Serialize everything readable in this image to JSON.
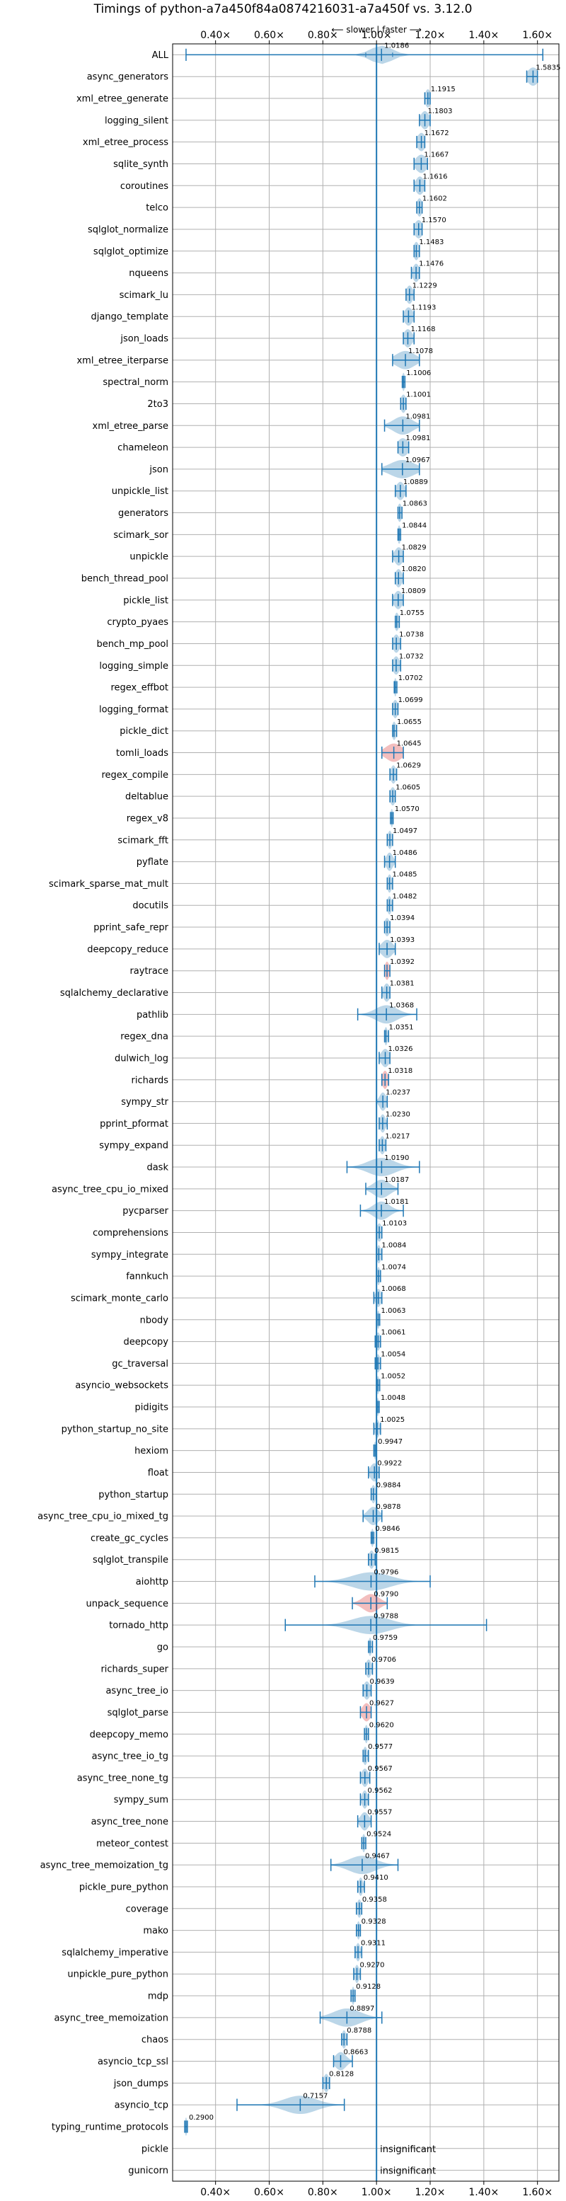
{
  "colors": {
    "background": "#ffffff",
    "violin": "#1f77b4",
    "highlight": "#d62728",
    "grid": "#b0b0b0",
    "reference": "#1f77b4"
  },
  "chart_data": {
    "type": "violin",
    "title": "Timings of python-a7a450f84a0874216031-a7a450f vs. 3.12.0",
    "direction_annotation": "⟵ slower  |  faster ⟶",
    "xlim": [
      0.24,
      1.68
    ],
    "reference_line": 1.0,
    "x_ticks": [
      {
        "value": 0.4,
        "label": "0.40×"
      },
      {
        "value": 0.6,
        "label": "0.60×"
      },
      {
        "value": 0.8,
        "label": "0.80×"
      },
      {
        "value": 1.0,
        "label": "1.00×"
      },
      {
        "value": 1.2,
        "label": "1.20×"
      },
      {
        "value": 1.4,
        "label": "1.40×"
      },
      {
        "value": 1.6,
        "label": "1.60×"
      }
    ],
    "benchmarks": [
      {
        "name": "ALL",
        "value": 1.0186,
        "label": "1.0186",
        "min": 0.29,
        "max": 1.62,
        "spread": 0.04,
        "q1": 0.96,
        "q3": 1.06
      },
      {
        "name": "async_generators",
        "value": 1.5835,
        "label": "1.5835",
        "min": 1.56,
        "max": 1.6,
        "spread": 0.02
      },
      {
        "name": "xml_etree_generate",
        "value": 1.1915,
        "label": "1.1915",
        "min": 1.18,
        "max": 1.2,
        "spread": 0.01
      },
      {
        "name": "logging_silent",
        "value": 1.1803,
        "label": "1.1803",
        "min": 1.16,
        "max": 1.2,
        "spread": 0.015
      },
      {
        "name": "xml_etree_process",
        "value": 1.1672,
        "label": "1.1672",
        "min": 1.15,
        "max": 1.18,
        "spread": 0.015
      },
      {
        "name": "sqlite_synth",
        "value": 1.1667,
        "label": "1.1667",
        "min": 1.14,
        "max": 1.19,
        "spread": 0.02
      },
      {
        "name": "coroutines",
        "value": 1.1616,
        "label": "1.1616",
        "min": 1.14,
        "max": 1.18,
        "spread": 0.015
      },
      {
        "name": "telco",
        "value": 1.1602,
        "label": "1.1602",
        "min": 1.15,
        "max": 1.17,
        "spread": 0.01
      },
      {
        "name": "sqlglot_normalize",
        "value": 1.157,
        "label": "1.1570",
        "min": 1.14,
        "max": 1.17,
        "spread": 0.015
      },
      {
        "name": "sqlglot_optimize",
        "value": 1.1483,
        "label": "1.1483",
        "min": 1.14,
        "max": 1.16,
        "spread": 0.01
      },
      {
        "name": "nqueens",
        "value": 1.1476,
        "label": "1.1476",
        "min": 1.13,
        "max": 1.16,
        "spread": 0.012
      },
      {
        "name": "scimark_lu",
        "value": 1.1229,
        "label": "1.1229",
        "min": 1.11,
        "max": 1.14,
        "spread": 0.012
      },
      {
        "name": "django_template",
        "value": 1.1193,
        "label": "1.1193",
        "min": 1.1,
        "max": 1.14,
        "spread": 0.015
      },
      {
        "name": "json_loads",
        "value": 1.1168,
        "label": "1.1168",
        "min": 1.1,
        "max": 1.14,
        "spread": 0.015
      },
      {
        "name": "xml_etree_iterparse",
        "value": 1.1078,
        "label": "1.1078",
        "min": 1.06,
        "max": 1.16,
        "spread": 0.035
      },
      {
        "name": "spectral_norm",
        "value": 1.1006,
        "label": "1.1006",
        "min": 1.096,
        "max": 1.106,
        "spread": 0.005
      },
      {
        "name": "2to3",
        "value": 1.1001,
        "label": "1.1001",
        "min": 1.09,
        "max": 1.11,
        "spread": 0.01
      },
      {
        "name": "xml_etree_parse",
        "value": 1.0981,
        "label": "1.0981",
        "min": 1.03,
        "max": 1.16,
        "spread": 0.035
      },
      {
        "name": "chameleon",
        "value": 1.0981,
        "label": "1.0981",
        "min": 1.08,
        "max": 1.12,
        "spread": 0.02
      },
      {
        "name": "json",
        "value": 1.0967,
        "label": "1.0967",
        "min": 1.02,
        "max": 1.16,
        "spread": 0.045
      },
      {
        "name": "unpickle_list",
        "value": 1.0889,
        "label": "1.0889",
        "min": 1.07,
        "max": 1.11,
        "spread": 0.015
      },
      {
        "name": "generators",
        "value": 1.0863,
        "label": "1.0863",
        "min": 1.08,
        "max": 1.095,
        "spread": 0.008
      },
      {
        "name": "scimark_sor",
        "value": 1.0844,
        "label": "1.0844",
        "min": 1.08,
        "max": 1.09,
        "spread": 0.006
      },
      {
        "name": "unpickle",
        "value": 1.0829,
        "label": "1.0829",
        "min": 1.06,
        "max": 1.1,
        "spread": 0.015
      },
      {
        "name": "bench_thread_pool",
        "value": 1.082,
        "label": "1.0820",
        "min": 1.07,
        "max": 1.1,
        "spread": 0.012
      },
      {
        "name": "pickle_list",
        "value": 1.0809,
        "label": "1.0809",
        "min": 1.06,
        "max": 1.1,
        "spread": 0.015
      },
      {
        "name": "crypto_pyaes",
        "value": 1.0755,
        "label": "1.0755",
        "min": 1.07,
        "max": 1.085,
        "spread": 0.008
      },
      {
        "name": "bench_mp_pool",
        "value": 1.0738,
        "label": "1.0738",
        "min": 1.06,
        "max": 1.09,
        "spread": 0.012
      },
      {
        "name": "logging_simple",
        "value": 1.0732,
        "label": "1.0732",
        "min": 1.06,
        "max": 1.09,
        "spread": 0.012
      },
      {
        "name": "regex_effbot",
        "value": 1.0702,
        "label": "1.0702",
        "min": 1.066,
        "max": 1.076,
        "spread": 0.005
      },
      {
        "name": "logging_format",
        "value": 1.0699,
        "label": "1.0699",
        "min": 1.06,
        "max": 1.08,
        "spread": 0.01
      },
      {
        "name": "pickle_dict",
        "value": 1.0655,
        "label": "1.0655",
        "min": 1.06,
        "max": 1.075,
        "spread": 0.008
      },
      {
        "name": "tomli_loads",
        "value": 1.0645,
        "label": "1.0645",
        "min": 1.02,
        "max": 1.1,
        "spread": 0.03,
        "highlight": true
      },
      {
        "name": "regex_compile",
        "value": 1.0629,
        "label": "1.0629",
        "min": 1.05,
        "max": 1.075,
        "spread": 0.01
      },
      {
        "name": "deltablue",
        "value": 1.0605,
        "label": "1.0605",
        "min": 1.05,
        "max": 1.07,
        "spread": 0.01
      },
      {
        "name": "regex_v8",
        "value": 1.057,
        "label": "1.0570",
        "min": 1.052,
        "max": 1.062,
        "spread": 0.005
      },
      {
        "name": "scimark_fft",
        "value": 1.0497,
        "label": "1.0497",
        "min": 1.04,
        "max": 1.06,
        "spread": 0.008
      },
      {
        "name": "pyflate",
        "value": 1.0486,
        "label": "1.0486",
        "min": 1.03,
        "max": 1.07,
        "spread": 0.012
      },
      {
        "name": "scimark_sparse_mat_mult",
        "value": 1.0485,
        "label": "1.0485",
        "min": 1.04,
        "max": 1.06,
        "spread": 0.008
      },
      {
        "name": "docutils",
        "value": 1.0482,
        "label": "1.0482",
        "min": 1.04,
        "max": 1.06,
        "spread": 0.008
      },
      {
        "name": "pprint_safe_repr",
        "value": 1.0394,
        "label": "1.0394",
        "min": 1.03,
        "max": 1.05,
        "spread": 0.01
      },
      {
        "name": "deepcopy_reduce",
        "value": 1.0393,
        "label": "1.0393",
        "min": 1.01,
        "max": 1.07,
        "spread": 0.02
      },
      {
        "name": "raytrace",
        "value": 1.0392,
        "label": "1.0392",
        "min": 1.03,
        "max": 1.05,
        "spread": 0.008,
        "highlight": true
      },
      {
        "name": "sqlalchemy_declarative",
        "value": 1.0381,
        "label": "1.0381",
        "min": 1.02,
        "max": 1.05,
        "spread": 0.012
      },
      {
        "name": "pathlib",
        "value": 1.0368,
        "label": "1.0368",
        "min": 0.93,
        "max": 1.15,
        "spread": 0.04
      },
      {
        "name": "regex_dna",
        "value": 1.0351,
        "label": "1.0351",
        "min": 1.03,
        "max": 1.045,
        "spread": 0.006
      },
      {
        "name": "dulwich_log",
        "value": 1.0326,
        "label": "1.0326",
        "min": 1.01,
        "max": 1.05,
        "spread": 0.015
      },
      {
        "name": "richards",
        "value": 1.0318,
        "label": "1.0318",
        "min": 1.02,
        "max": 1.045,
        "spread": 0.01,
        "highlight": true
      },
      {
        "name": "sympy_str",
        "value": 1.0237,
        "label": "1.0237",
        "min": 1.0,
        "max": 1.04,
        "spread": 0.012
      },
      {
        "name": "pprint_pformat",
        "value": 1.023,
        "label": "1.0230",
        "min": 1.01,
        "max": 1.04,
        "spread": 0.01
      },
      {
        "name": "sympy_expand",
        "value": 1.0217,
        "label": "1.0217",
        "min": 1.01,
        "max": 1.035,
        "spread": 0.01
      },
      {
        "name": "dask",
        "value": 1.019,
        "label": "1.0190",
        "min": 0.89,
        "max": 1.16,
        "spread": 0.05
      },
      {
        "name": "async_tree_cpu_io_mixed",
        "value": 1.0187,
        "label": "1.0187",
        "min": 0.96,
        "max": 1.08,
        "spread": 0.03
      },
      {
        "name": "pycparser",
        "value": 1.0181,
        "label": "1.0181",
        "min": 0.94,
        "max": 1.1,
        "spread": 0.03
      },
      {
        "name": "comprehensions",
        "value": 1.0103,
        "label": "1.0103",
        "min": 1.0,
        "max": 1.02,
        "spread": 0.01
      },
      {
        "name": "sympy_integrate",
        "value": 1.0084,
        "label": "1.0084",
        "min": 1.0,
        "max": 1.02,
        "spread": 0.008
      },
      {
        "name": "fannkuch",
        "value": 1.0074,
        "label": "1.0074",
        "min": 1.0,
        "max": 1.015,
        "spread": 0.006
      },
      {
        "name": "scimark_monte_carlo",
        "value": 1.0068,
        "label": "1.0068",
        "min": 0.99,
        "max": 1.02,
        "spread": 0.01
      },
      {
        "name": "nbody",
        "value": 1.0063,
        "label": "1.0063",
        "min": 1.0,
        "max": 1.012,
        "spread": 0.005
      },
      {
        "name": "deepcopy",
        "value": 1.0061,
        "label": "1.0061",
        "min": 0.995,
        "max": 1.015,
        "spread": 0.008
      },
      {
        "name": "gc_traversal",
        "value": 1.0054,
        "label": "1.0054",
        "min": 0.995,
        "max": 1.015,
        "spread": 0.008
      },
      {
        "name": "asyncio_websockets",
        "value": 1.0052,
        "label": "1.0052",
        "min": 1.0,
        "max": 1.012,
        "spread": 0.005
      },
      {
        "name": "pidigits",
        "value": 1.0048,
        "label": "1.0048",
        "min": 1.0,
        "max": 1.01,
        "spread": 0.004
      },
      {
        "name": "python_startup_no_site",
        "value": 1.0025,
        "label": "1.0025",
        "min": 0.99,
        "max": 1.015,
        "spread": 0.008
      },
      {
        "name": "hexiom",
        "value": 0.9947,
        "label": "0.9947",
        "min": 0.99,
        "max": 1.0,
        "spread": 0.004
      },
      {
        "name": "float",
        "value": 0.9922,
        "label": "0.9922",
        "min": 0.97,
        "max": 1.01,
        "spread": 0.015
      },
      {
        "name": "python_startup",
        "value": 0.9884,
        "label": "0.9884",
        "min": 0.98,
        "max": 1.0,
        "spread": 0.008
      },
      {
        "name": "async_tree_cpu_io_mixed_tg",
        "value": 0.9878,
        "label": "0.9878",
        "min": 0.95,
        "max": 1.02,
        "spread": 0.02
      },
      {
        "name": "create_gc_cycles",
        "value": 0.9846,
        "label": "0.9846",
        "min": 0.98,
        "max": 0.99,
        "spread": 0.005
      },
      {
        "name": "sqlglot_transpile",
        "value": 0.9815,
        "label": "0.9815",
        "min": 0.97,
        "max": 0.995,
        "spread": 0.01
      },
      {
        "name": "aiohttp",
        "value": 0.9796,
        "label": "0.9796",
        "min": 0.77,
        "max": 1.2,
        "spread": 0.07
      },
      {
        "name": "unpack_sequence",
        "value": 0.979,
        "label": "0.9790",
        "min": 0.91,
        "max": 1.04,
        "spread": 0.03,
        "highlight": true
      },
      {
        "name": "tornado_http",
        "value": 0.9788,
        "label": "0.9788",
        "min": 0.66,
        "max": 1.41,
        "spread": 0.07
      },
      {
        "name": "go",
        "value": 0.9759,
        "label": "0.9759",
        "min": 0.97,
        "max": 0.985,
        "spread": 0.006
      },
      {
        "name": "richards_super",
        "value": 0.9706,
        "label": "0.9706",
        "min": 0.96,
        "max": 0.985,
        "spread": 0.01
      },
      {
        "name": "async_tree_io",
        "value": 0.9639,
        "label": "0.9639",
        "min": 0.95,
        "max": 0.98,
        "spread": 0.012
      },
      {
        "name": "sqlglot_parse",
        "value": 0.9627,
        "label": "0.9627",
        "min": 0.94,
        "max": 0.98,
        "spread": 0.015,
        "highlight": true
      },
      {
        "name": "deepcopy_memo",
        "value": 0.962,
        "label": "0.9620",
        "min": 0.955,
        "max": 0.97,
        "spread": 0.006
      },
      {
        "name": "async_tree_io_tg",
        "value": 0.9577,
        "label": "0.9577",
        "min": 0.95,
        "max": 0.97,
        "spread": 0.008
      },
      {
        "name": "async_tree_none_tg",
        "value": 0.9567,
        "label": "0.9567",
        "min": 0.94,
        "max": 0.975,
        "spread": 0.012
      },
      {
        "name": "sympy_sum",
        "value": 0.9562,
        "label": "0.9562",
        "min": 0.94,
        "max": 0.97,
        "spread": 0.01
      },
      {
        "name": "async_tree_none",
        "value": 0.9557,
        "label": "0.9557",
        "min": 0.93,
        "max": 0.98,
        "spread": 0.015
      },
      {
        "name": "meteor_contest",
        "value": 0.9524,
        "label": "0.9524",
        "min": 0.945,
        "max": 0.96,
        "spread": 0.006
      },
      {
        "name": "async_tree_memoization_tg",
        "value": 0.9467,
        "label": "0.9467",
        "min": 0.83,
        "max": 1.08,
        "spread": 0.05
      },
      {
        "name": "pickle_pure_python",
        "value": 0.941,
        "label": "0.9410",
        "min": 0.93,
        "max": 0.955,
        "spread": 0.008
      },
      {
        "name": "coverage",
        "value": 0.9358,
        "label": "0.9358",
        "min": 0.925,
        "max": 0.945,
        "spread": 0.008
      },
      {
        "name": "mako",
        "value": 0.9328,
        "label": "0.9328",
        "min": 0.925,
        "max": 0.94,
        "spread": 0.006
      },
      {
        "name": "sqlalchemy_imperative",
        "value": 0.9311,
        "label": "0.9311",
        "min": 0.92,
        "max": 0.945,
        "spread": 0.008
      },
      {
        "name": "unpickle_pure_python",
        "value": 0.927,
        "label": "0.9270",
        "min": 0.915,
        "max": 0.94,
        "spread": 0.008
      },
      {
        "name": "mdp",
        "value": 0.9128,
        "label": "0.9128",
        "min": 0.905,
        "max": 0.92,
        "spread": 0.005
      },
      {
        "name": "async_tree_memoization",
        "value": 0.8897,
        "label": "0.8897",
        "min": 0.79,
        "max": 1.02,
        "spread": 0.05
      },
      {
        "name": "chaos",
        "value": 0.8788,
        "label": "0.8788",
        "min": 0.87,
        "max": 0.89,
        "spread": 0.008
      },
      {
        "name": "asyncio_tcp_ssl",
        "value": 0.8663,
        "label": "0.8663",
        "min": 0.84,
        "max": 0.91,
        "spread": 0.02
      },
      {
        "name": "json_dumps",
        "value": 0.8128,
        "label": "0.8128",
        "min": 0.8,
        "max": 0.825,
        "spread": 0.01
      },
      {
        "name": "asyncio_tcp",
        "value": 0.7157,
        "label": "0.7157",
        "min": 0.48,
        "max": 0.88,
        "spread": 0.06
      },
      {
        "name": "typing_runtime_protocols",
        "value": 0.29,
        "label": "0.2900",
        "min": 0.285,
        "max": 0.295,
        "spread": 0.004
      },
      {
        "name": "pickle",
        "value": null,
        "label": "insignificant"
      },
      {
        "name": "gunicorn",
        "value": null,
        "label": "insignificant"
      }
    ]
  }
}
